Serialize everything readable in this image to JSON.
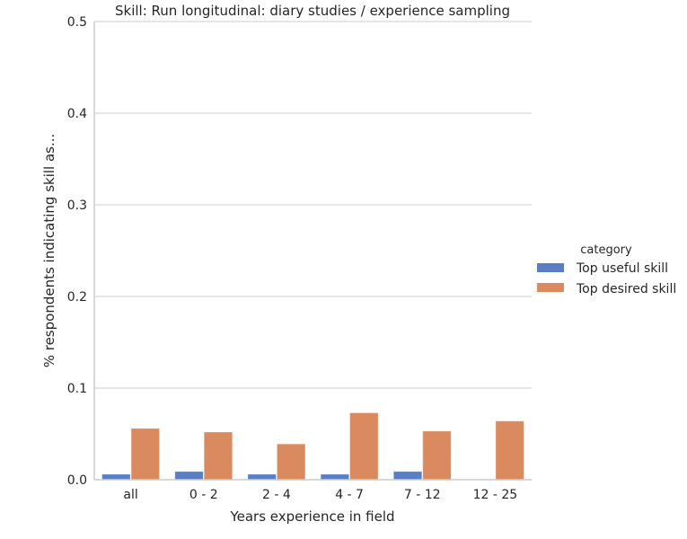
{
  "chart_data": {
    "type": "bar",
    "title": "Skill: Run longitudinal: diary studies / experience sampling",
    "xlabel": "Years experience in field",
    "ylabel": "% respondents indicating skill as...",
    "ylim": [
      0,
      0.5
    ],
    "yticks": [
      "0.0",
      "0.1",
      "0.2",
      "0.3",
      "0.4",
      "0.5"
    ],
    "grid": "horizontal",
    "categories": [
      "all",
      "0 - 2",
      "2 - 4",
      "4 - 7",
      "7 - 12",
      "12 - 25"
    ],
    "legend": {
      "title": "category",
      "placement": "right"
    },
    "series": [
      {
        "name": "Top useful skill",
        "color": "#5a7ec4",
        "values": [
          0.006,
          0.009,
          0.006,
          0.006,
          0.009,
          0.0
        ]
      },
      {
        "name": "Top desired skill",
        "color": "#d98a5f",
        "values": [
          0.056,
          0.052,
          0.039,
          0.073,
          0.053,
          0.064
        ]
      }
    ]
  }
}
